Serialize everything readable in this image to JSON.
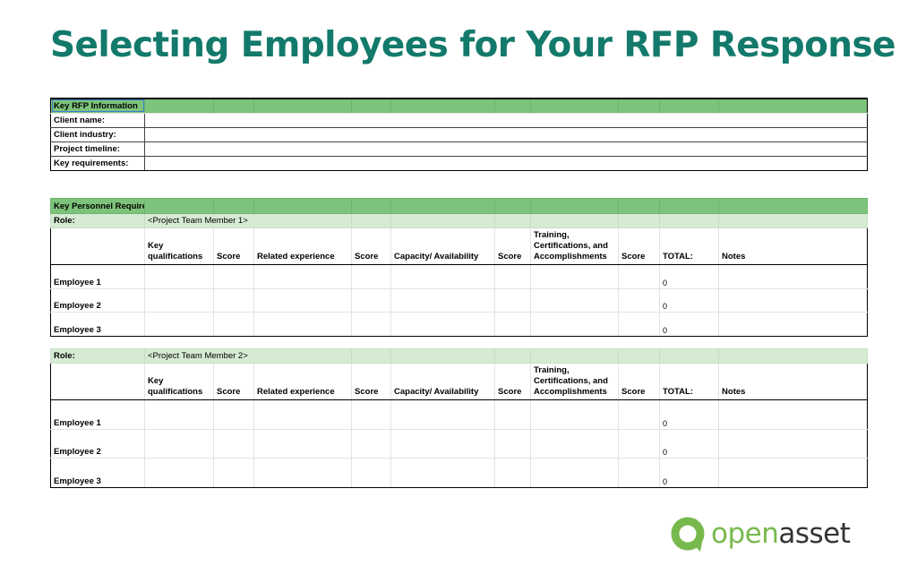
{
  "page": {
    "title": "Selecting Employees for Your RFP Response"
  },
  "rfp_info": {
    "header": "Key RFP Information",
    "rows": [
      {
        "label": "Client name:",
        "value": ""
      },
      {
        "label": "Client industry:",
        "value": ""
      },
      {
        "label": "Project timeline:",
        "value": ""
      },
      {
        "label": "Key requirements:",
        "value": ""
      }
    ]
  },
  "personnel": {
    "header": "Key Personnel Required",
    "columns": {
      "key_qualifications": "Key qualifications",
      "score": "Score",
      "related_experience": "Related experience",
      "capacity": "Capacity/ Availability",
      "training": "Training, Certifications, and Accomplishments",
      "total": "TOTAL:",
      "notes": "Notes"
    },
    "roles": [
      {
        "role_label": "Role:",
        "role_value": "<Project Team Member 1>",
        "employees": [
          {
            "name": "Employee 1",
            "total": "0"
          },
          {
            "name": "Employee 2",
            "total": "0"
          },
          {
            "name": "Employee 3",
            "total": "0"
          }
        ]
      },
      {
        "role_label": "Role:",
        "role_value": "<Project Team Member 2>",
        "employees": [
          {
            "name": "Employee 1",
            "total": "0"
          },
          {
            "name": "Employee 2",
            "total": "0"
          },
          {
            "name": "Employee 3",
            "total": "0"
          }
        ]
      }
    ]
  },
  "logo": {
    "text_prefix": "open",
    "text_suffix": "asset",
    "icon": "openasset-logo-icon"
  },
  "colors": {
    "title": "#137a6b",
    "header_green": "#7dc37b",
    "role_green": "#d5ebd3",
    "logo_green": "#78b94e",
    "logo_gray": "#333333"
  }
}
